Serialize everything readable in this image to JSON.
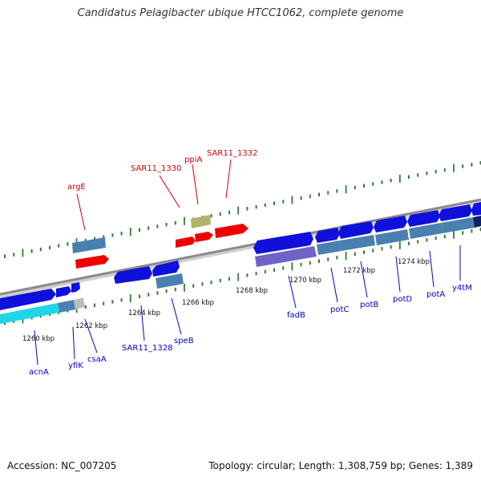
{
  "title": "Candidatus Pelagibacter ubique HTCC1062, complete genome",
  "footer": {
    "accession": "Accession: NC_007205",
    "topology": "Topology: circular; Length: 1,308,759 bp; Genes: 1,389"
  },
  "colors": {
    "backbone": "#8a8a8a",
    "tick": "#2f7d2f",
    "cds": "#1010dd",
    "rna": "#ee0000",
    "pseudo": "#b5b16a",
    "feature": "#4a80b0",
    "domain": "#6f63c8",
    "cyan": "#1fd5e8",
    "navy": "#0b1f66",
    "label_blue": "#0000cc",
    "label_red": "#cc0000"
  },
  "scale_labels": [
    "1260 kbp",
    "1262 kbp",
    "1264 kbp",
    "1266 kbp",
    "1268 kbp",
    "1270 kbp",
    "1272 kbp",
    "1274 kbp"
  ],
  "gene_labels_top": [
    "argE",
    "SAR11_1330",
    "ppiA",
    "SAR11_1332"
  ],
  "gene_labels_bottom": [
    "acnA",
    "yfiK",
    "csaA",
    "SAR11_1328",
    "speB",
    "fadB",
    "potC",
    "potB",
    "potD",
    "potA",
    "y4tM"
  ]
}
